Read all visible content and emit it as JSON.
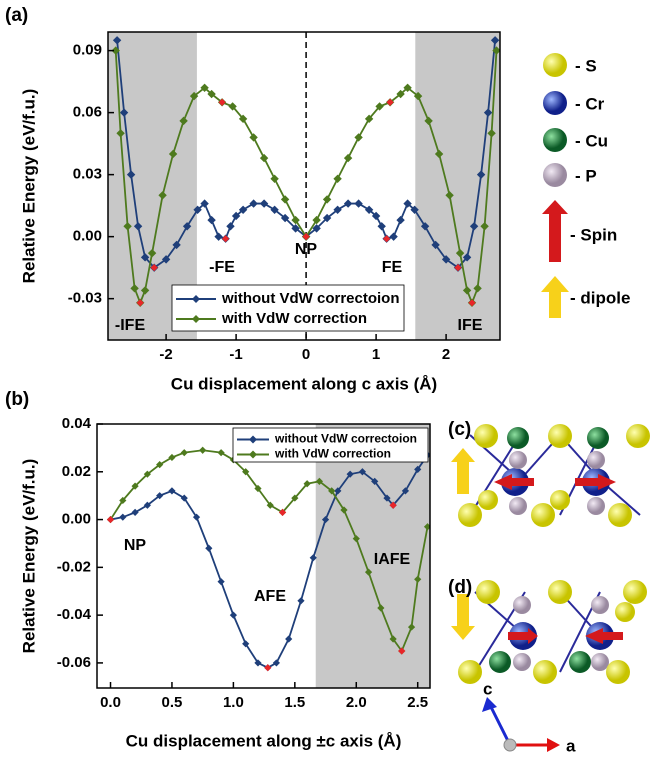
{
  "chart_data": [
    {
      "type": "line",
      "panel": "(a)",
      "x_label": "Cu displacement along c axis (Å)",
      "y_label": "Relative Energy (eV/f.u.)",
      "xlim": [
        -2.83,
        2.77
      ],
      "ylim": [
        -0.05,
        0.099
      ],
      "xticks": [
        -2,
        -1,
        0,
        1,
        2
      ],
      "yticks": [
        -0.03,
        {
          "value": 0,
          "label": "0.00"
        },
        0.03,
        0.06,
        0.09
      ],
      "shaded_x": [
        [
          -2.83,
          -1.56
        ],
        [
          1.56,
          2.77
        ]
      ],
      "zero_line_x": 0,
      "legend": "lower center",
      "series": [
        {
          "name": "without VdW correctoion",
          "color": "#1f3f7a",
          "x": [
            -2.7,
            -2.6,
            -2.5,
            -2.4,
            -2.3,
            -2.17,
            -2.0,
            -1.85,
            -1.7,
            -1.55,
            -1.45,
            -1.35,
            -1.25,
            -1.15,
            -1.08,
            -1.0,
            -0.9,
            -0.75,
            -0.6,
            -0.45,
            -0.3,
            -0.15,
            0,
            0.15,
            0.3,
            0.45,
            0.6,
            0.75,
            0.9,
            1.0,
            1.08,
            1.15,
            1.25,
            1.35,
            1.45,
            1.55,
            1.7,
            1.85,
            2.0,
            2.17,
            2.3,
            2.4,
            2.5,
            2.6,
            2.7
          ],
          "values": [
            0.095,
            0.06,
            0.03,
            0.005,
            -0.01,
            -0.015,
            -0.011,
            -0.004,
            0.005,
            0.013,
            0.016,
            0.008,
            0,
            -0.001,
            0.005,
            0.01,
            0.013,
            0.016,
            0.016,
            0.013,
            0.009,
            0.004,
            0,
            0.004,
            0.009,
            0.013,
            0.016,
            0.016,
            0.013,
            0.01,
            0.005,
            -0.001,
            0,
            0.008,
            0.016,
            0.013,
            0.005,
            -0.004,
            -0.011,
            -0.015,
            -0.01,
            0.005,
            0.03,
            0.06,
            0.095
          ]
        },
        {
          "name": "with VdW correction",
          "color": "#4e7a1e",
          "x": [
            -2.72,
            -2.65,
            -2.55,
            -2.45,
            -2.37,
            -2.3,
            -2.2,
            -2.05,
            -1.9,
            -1.75,
            -1.6,
            -1.45,
            -1.35,
            -1.2,
            -1.05,
            -0.9,
            -0.75,
            -0.6,
            -0.45,
            -0.3,
            -0.15,
            0,
            0.15,
            0.3,
            0.45,
            0.6,
            0.75,
            0.9,
            1.05,
            1.2,
            1.35,
            1.45,
            1.6,
            1.75,
            1.9,
            2.05,
            2.2,
            2.3,
            2.37,
            2.45,
            2.55,
            2.65,
            2.72
          ],
          "values": [
            0.09,
            0.05,
            0.005,
            -0.025,
            -0.032,
            -0.026,
            -0.008,
            0.02,
            0.04,
            0.056,
            0.068,
            0.072,
            0.069,
            0.065,
            0.063,
            0.057,
            0.048,
            0.038,
            0.028,
            0.018,
            0.008,
            0,
            0.008,
            0.018,
            0.028,
            0.038,
            0.048,
            0.057,
            0.063,
            0.065,
            0.069,
            0.072,
            0.068,
            0.056,
            0.04,
            0.02,
            -0.008,
            -0.026,
            -0.032,
            -0.025,
            0.005,
            0.05,
            0.09
          ]
        }
      ],
      "critical_points": {
        "color": "#e8262a",
        "x": [
          -2.37,
          -2.17,
          -1.2,
          -1.15,
          0,
          1.15,
          1.2,
          2.17,
          2.37
        ],
        "values": [
          -0.032,
          -0.015,
          0.065,
          -0.001,
          0,
          -0.001,
          0.065,
          -0.015,
          -0.032
        ]
      },
      "annotations": [
        "-IFE",
        "-FE",
        "NP",
        "FE",
        "IFE"
      ]
    },
    {
      "type": "line",
      "panel": "(b)",
      "x_label": "Cu displacement along ±c axis (Å)",
      "y_label": "Relative Energy (eV/f.u.)",
      "xlim": [
        -0.11,
        2.6
      ],
      "ylim": [
        -0.0705,
        0.04
      ],
      "xticks": [
        {
          "value": 0,
          "label": "0.0"
        },
        0.5,
        {
          "value": 1,
          "label": "1.0"
        },
        1.5,
        {
          "value": 2,
          "label": "2.0"
        },
        2.5
      ],
      "yticks": [
        -0.06,
        -0.04,
        -0.02,
        {
          "value": 0,
          "label": "0.00"
        },
        0.02,
        0.04
      ],
      "shaded_x": [
        [
          1.67,
          2.6
        ]
      ],
      "legend": "upper right",
      "series": [
        {
          "name": "without VdW correctoion",
          "color": "#1f3f7a",
          "x": [
            0,
            0.1,
            0.2,
            0.3,
            0.4,
            0.5,
            0.6,
            0.7,
            0.8,
            0.9,
            1.0,
            1.1,
            1.2,
            1.28,
            1.35,
            1.45,
            1.55,
            1.65,
            1.75,
            1.85,
            1.95,
            2.05,
            2.15,
            2.25,
            2.3,
            2.4,
            2.5,
            2.58
          ],
          "values": [
            0,
            0.001,
            0.003,
            0.006,
            0.01,
            0.012,
            0.009,
            0.001,
            -0.012,
            -0.026,
            -0.04,
            -0.052,
            -0.06,
            -0.062,
            -0.06,
            -0.05,
            -0.034,
            -0.016,
            0,
            0.012,
            0.019,
            0.02,
            0.016,
            0.009,
            0.006,
            0.012,
            0.021,
            0.027
          ]
        },
        {
          "name": "with VdW correction",
          "color": "#4e7a1e",
          "x": [
            0,
            0.1,
            0.2,
            0.3,
            0.4,
            0.5,
            0.6,
            0.75,
            0.9,
            1.0,
            1.1,
            1.2,
            1.3,
            1.4,
            1.5,
            1.6,
            1.7,
            1.8,
            1.9,
            2.0,
            2.1,
            2.2,
            2.3,
            2.37,
            2.45,
            2.5,
            2.58
          ],
          "values": [
            0,
            0.008,
            0.014,
            0.019,
            0.023,
            0.026,
            0.028,
            0.029,
            0.028,
            0.025,
            0.02,
            0.013,
            0.006,
            0.003,
            0.009,
            0.015,
            0.016,
            0.012,
            0.004,
            -0.008,
            -0.022,
            -0.037,
            -0.05,
            -0.055,
            -0.045,
            -0.025,
            -0.003
          ]
        }
      ],
      "critical_points": {
        "color": "#e8262a",
        "x": [
          0,
          1.28,
          1.4,
          2.3,
          2.37
        ],
        "values": [
          0,
          -0.062,
          0.003,
          0.006,
          -0.055
        ]
      },
      "annotations": [
        "NP",
        "AFE",
        "IAFE"
      ]
    }
  ],
  "key": {
    "items": [
      "- S",
      "- Cr",
      "- Cu",
      "- P",
      "- Spin",
      "- dipole"
    ]
  },
  "structures": {
    "panels": [
      "(c)",
      "(d)"
    ],
    "axes": [
      "c",
      "a"
    ]
  }
}
